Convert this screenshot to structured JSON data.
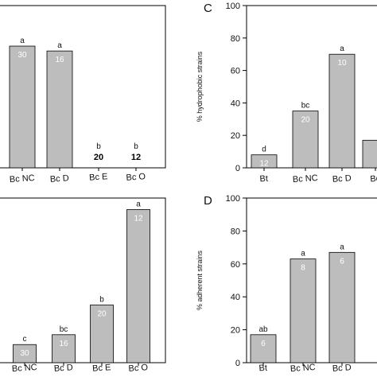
{
  "chart_data": [
    {
      "type": "bar",
      "panel": "",
      "ylabel": "",
      "ylim": [
        0,
        100
      ],
      "categories": [
        "Bc NC",
        "Bc D",
        "Bc E",
        "Bc O"
      ],
      "values": [
        75,
        72,
        0,
        0
      ],
      "sig": [
        "a",
        "a",
        "b",
        "b"
      ],
      "n": [
        "30",
        "16",
        "20",
        "12"
      ]
    },
    {
      "type": "bar",
      "panel": "C",
      "ylabel": "% hydrophobic strains",
      "ylim": [
        0,
        100
      ],
      "yticks": [
        0,
        20,
        40,
        60,
        80,
        100
      ],
      "categories": [
        "Bt",
        "Bc NC",
        "Bc D",
        "Bc"
      ],
      "values": [
        8,
        35,
        70,
        17
      ],
      "sig": [
        "d",
        "bc",
        "a",
        ""
      ],
      "n": [
        "12",
        "20",
        "10",
        ""
      ]
    },
    {
      "type": "bar",
      "panel": "",
      "ylabel": "",
      "ylim": [
        0,
        100
      ],
      "categories": [
        "Bc NC",
        "Bc D",
        "Bc E",
        "Bc O"
      ],
      "values": [
        11,
        17,
        35,
        93
      ],
      "sig": [
        "c",
        "bc",
        "b",
        "a"
      ],
      "n": [
        "30",
        "16",
        "20",
        "12"
      ]
    },
    {
      "type": "bar",
      "panel": "D",
      "ylabel": "% adherent strains",
      "ylim": [
        0,
        100
      ],
      "yticks": [
        0,
        20,
        40,
        60,
        80,
        100
      ],
      "categories": [
        "Bt",
        "Bc NC",
        "Bc D"
      ],
      "values": [
        17,
        63,
        67
      ],
      "sig": [
        "ab",
        "a",
        "a"
      ],
      "n": [
        "6",
        "8",
        "6"
      ]
    }
  ]
}
